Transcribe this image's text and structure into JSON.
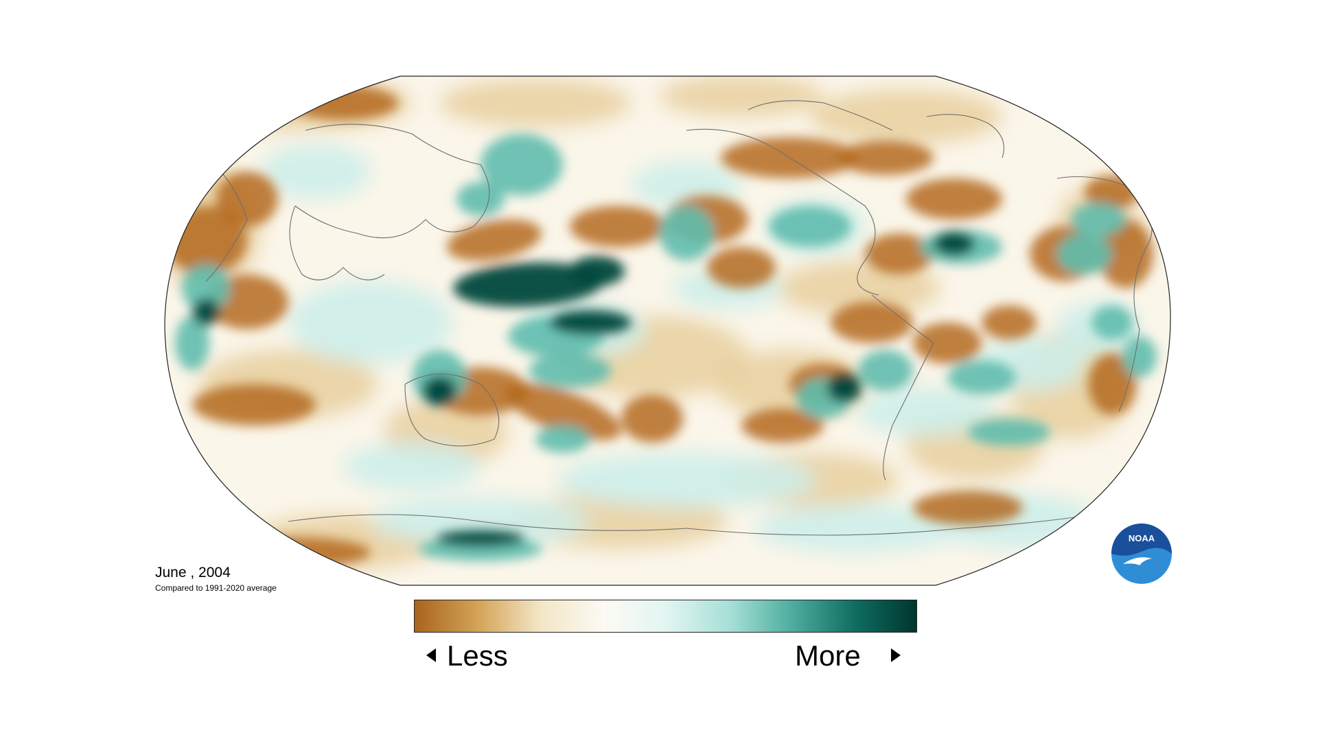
{
  "map": {
    "caption_date": "June , 2004",
    "caption_sub": "Compared to 1991-2020 average",
    "colors": {
      "dry_strong": "#b46a1e",
      "dry_light": "#e8cf9e",
      "neutral": "#fdfdfb",
      "wet_light": "#cdeeea",
      "wet_mid": "#5fbcae",
      "wet_strong": "#00473d",
      "coastline": "#6e6e6e",
      "frame": "#222222"
    }
  },
  "legend": {
    "less_label": "Less",
    "more_label": "More",
    "gradient": [
      "#a8641d",
      "#d5a55a",
      "#f3e6c6",
      "#fbfaf4",
      "#e3f5f2",
      "#a5dfd6",
      "#4fae9f",
      "#0e6c5f",
      "#00362e"
    ]
  },
  "logo": {
    "text": "NOAA",
    "primary_color": "#1a4f9c",
    "secondary_color": "#2f8dd6",
    "icon": "noaa-bird-logo-icon"
  }
}
